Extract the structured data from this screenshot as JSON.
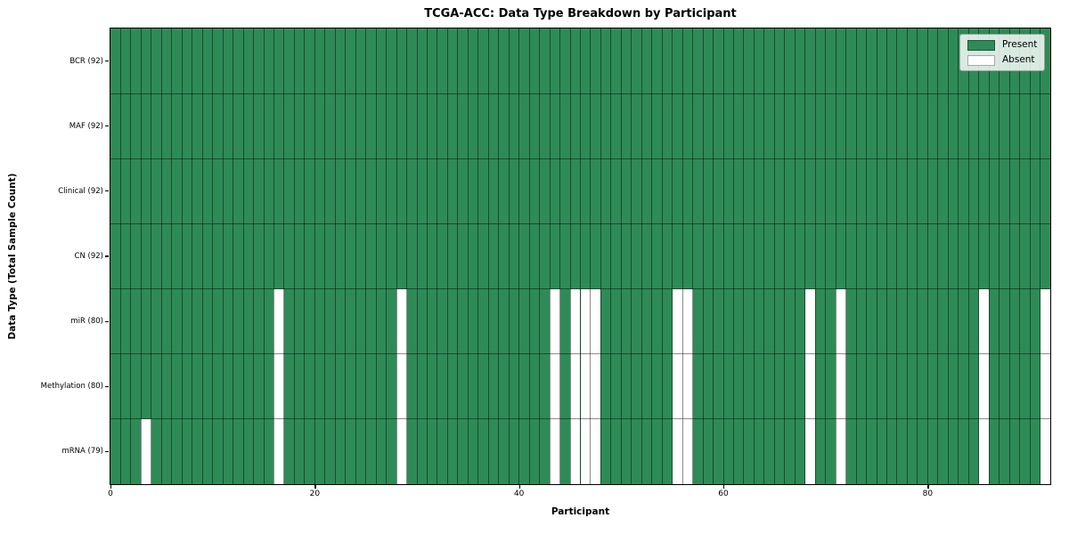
{
  "chart_data": {
    "type": "heatmap",
    "title": "TCGA-ACC: Data Type Breakdown by Participant",
    "xlabel": "Participant",
    "ylabel": "Data Type (Total Sample Count)",
    "n_participants": 92,
    "x_range": [
      0,
      92
    ],
    "x_ticks": [
      0,
      20,
      40,
      60,
      80
    ],
    "legend_position": "upper right",
    "legend": [
      {
        "label": "Present",
        "color": "#2e8b57"
      },
      {
        "label": "Absent",
        "color": "#ffffff"
      }
    ],
    "rows": [
      {
        "label": "BCR (92)",
        "data_type": "BCR",
        "present_count": 92,
        "absent_participants": []
      },
      {
        "label": "MAF (92)",
        "data_type": "MAF",
        "present_count": 92,
        "absent_participants": []
      },
      {
        "label": "Clinical (92)",
        "data_type": "Clinical",
        "present_count": 92,
        "absent_participants": []
      },
      {
        "label": "CN (92)",
        "data_type": "CN",
        "present_count": 92,
        "absent_participants": []
      },
      {
        "label": "miR (80)",
        "data_type": "miR",
        "present_count": 80,
        "absent_participants": [
          16,
          28,
          43,
          45,
          46,
          47,
          55,
          56,
          68,
          71,
          85,
          91
        ]
      },
      {
        "label": "Methylation (80)",
        "data_type": "Methylation",
        "present_count": 80,
        "absent_participants": [
          16,
          28,
          43,
          45,
          46,
          47,
          55,
          56,
          68,
          71,
          85,
          91
        ]
      },
      {
        "label": "mRNA (79)",
        "data_type": "mRNA",
        "present_count": 79,
        "absent_participants": [
          3,
          16,
          28,
          43,
          45,
          46,
          47,
          55,
          56,
          68,
          71,
          85,
          91
        ]
      }
    ],
    "colors": {
      "present": "#2e8b57",
      "absent": "#ffffff",
      "grid_line": "rgba(0,0,0,0.45)",
      "frame": "#000000"
    }
  }
}
